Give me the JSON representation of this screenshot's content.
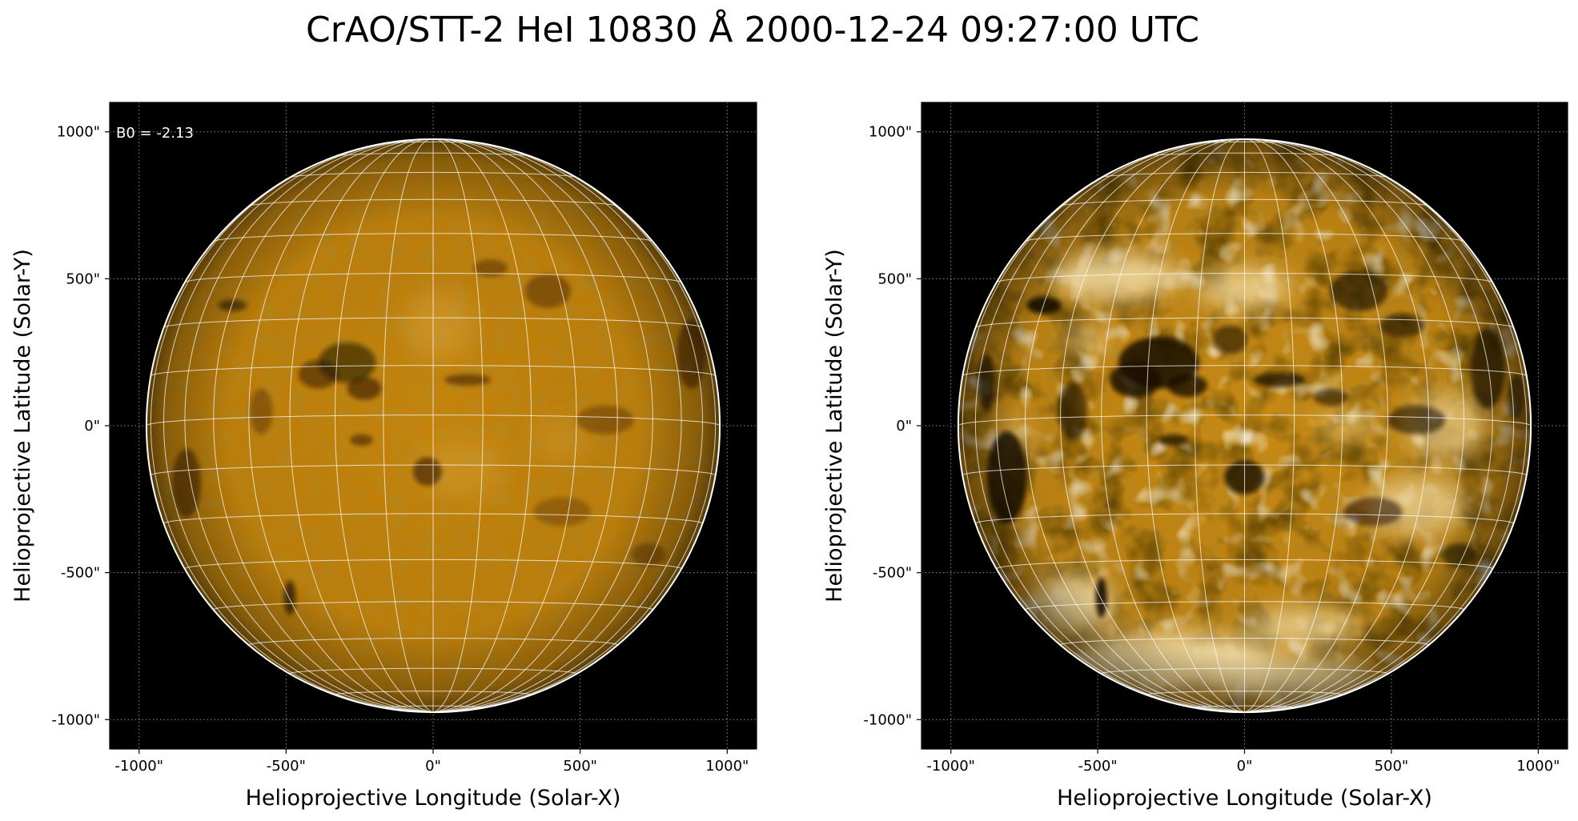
{
  "figure": {
    "title": "CrAO/STT-2 HeI 10830 Å 2000-12-24 09:27:00 UTC",
    "annotation": "B0 = -2.13"
  },
  "axes_common": {
    "xlabel": "Helioprojective Longitude (Solar-X)",
    "ylabel": "Helioprojective Latitude (Solar-Y)",
    "x_ticks": [
      "-1000\"",
      "-500\"",
      "0\"",
      "500\"",
      "1000\""
    ],
    "y_ticks": [
      "1000\"",
      "500\"",
      "0\"",
      "-500\"",
      "-1000\""
    ],
    "x_range_arcsec": [
      -1100,
      1100
    ],
    "y_range_arcsec": [
      -1100,
      1100
    ],
    "solar_radius_arcsec": 975,
    "b0_deg": -2.13,
    "grid_spacing_deg": 10
  },
  "panels": [
    {
      "name": "original",
      "disk_style": "normal contrast"
    },
    {
      "name": "enhanced",
      "disk_style": "high contrast"
    }
  ],
  "colors": {
    "disk_base": "#c4830a",
    "disk_dark": "#1a0c00",
    "disk_light": "#ffe6a8",
    "background": "#000000",
    "limb": "#ffffff"
  }
}
